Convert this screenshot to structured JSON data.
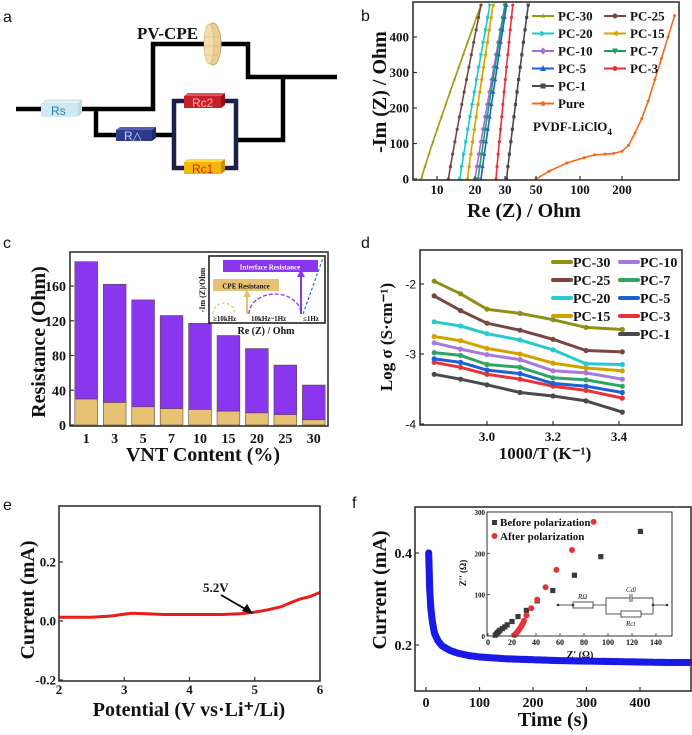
{
  "panels": {
    "a": {
      "letter": "a",
      "title": "PV-CPE",
      "components": {
        "rs": "Rs",
        "ra": "R△",
        "rc2": "Rc2",
        "rc1": "Rc1"
      },
      "colors": {
        "rs": "#cfe9f2",
        "ra": "#2e3a8c",
        "rc2": "#c8202a",
        "rc1": "#f5b800",
        "cpe": "#e9cf94",
        "wire_inner": "#1b1f4a"
      }
    },
    "b": {
      "letter": "b",
      "annotation": "PVDF-LiClO",
      "annotation_sub": "4"
    },
    "c": {
      "letter": "c",
      "inset": {
        "interface_label": "Interface Resistance",
        "cpe_label": "CPE Resistance",
        "ylabel": "-Im (Z)/Ohm",
        "xlabel": "Re (Z) / Ohm",
        "freq_labels": [
          "≥10kHz",
          "10kHz~1Hz",
          "≤1Hz"
        ]
      }
    },
    "d": {
      "letter": "d"
    },
    "e": {
      "letter": "e",
      "annotation": "5.2V"
    },
    "f": {
      "letter": "f",
      "inset": {
        "legend": [
          "Before polarization",
          "After polarization"
        ],
        "xlabel": "Z' (Ω)",
        "ylabel": "Z'' (Ω)",
        "xticks": [
          "0",
          "20",
          "40",
          "60",
          "80",
          "100",
          "120",
          "140"
        ],
        "yticks": [
          "0",
          "100",
          "200",
          "300"
        ],
        "circuit": {
          "r_omega": "RΩ",
          "c_dl": "Cdl",
          "r_ct": "Rct"
        }
      }
    }
  },
  "chart_data": [
    {
      "id": "b",
      "type": "line",
      "title": "",
      "xlabel": "Re (Z) / Ohm",
      "ylabel": "-Im (Z) / Ohm",
      "xticks": [
        "10",
        "20",
        "30",
        "50",
        "100",
        "200"
      ],
      "yticks": [
        "0",
        "100",
        "200",
        "300",
        "400"
      ],
      "ylim": [
        0,
        490
      ],
      "x_axis_note": "broken/non-linear scale",
      "legend_position": "top-right",
      "series": [
        {
          "name": "PC-30",
          "color": "#9a9a12",
          "marker": "star",
          "x_start": 5,
          "x_end": 22
        },
        {
          "name": "PC-25",
          "color": "#7a4545",
          "marker": "circle",
          "x_start": 13,
          "x_end": 22
        },
        {
          "name": "PC-20",
          "color": "#1fc8c8",
          "marker": "triangle-right",
          "x_start": 16,
          "x_end": 25
        },
        {
          "name": "PC-15",
          "color": "#d7a300",
          "marker": "triangle-left",
          "x_start": 18,
          "x_end": 26
        },
        {
          "name": "PC-10",
          "color": "#a46ee0",
          "marker": "diamond",
          "x_start": 20,
          "x_end": 30
        },
        {
          "name": "PC-7",
          "color": "#1f9e5a",
          "marker": "triangle-down",
          "x_start": 21,
          "x_end": 30
        },
        {
          "name": "PC-5",
          "color": "#1f5fd6",
          "marker": "triangle-up",
          "x_start": 22,
          "x_end": 31
        },
        {
          "name": "PC-3",
          "color": "#e8323a",
          "marker": "circle",
          "x_start": 27,
          "x_end": 35
        },
        {
          "name": "PC-1",
          "color": "#4a4a4a",
          "marker": "square",
          "x_start": 31,
          "x_end": 45
        },
        {
          "name": "Pure",
          "color": "#f26b1d",
          "marker": "pentagon",
          "points": [
            [
              50,
              0
            ],
            [
              65,
              22
            ],
            [
              85,
              45
            ],
            [
              110,
              60
            ],
            [
              135,
              68
            ],
            [
              160,
              70
            ],
            [
              180,
              72
            ],
            [
              200,
              78
            ],
            [
              215,
              95
            ],
            [
              230,
              130
            ],
            [
              245,
              170
            ],
            [
              260,
              220
            ],
            [
              275,
              280
            ],
            [
              290,
              340
            ],
            [
              305,
              400
            ],
            [
              320,
              460
            ]
          ]
        }
      ]
    },
    {
      "id": "c",
      "type": "bar",
      "stacked": true,
      "xlabel": "VNT Content (%)",
      "ylabel": "Resistance (Ohm)",
      "categories": [
        "1",
        "3",
        "5",
        "7",
        "10",
        "15",
        "20",
        "25",
        "30"
      ],
      "yticks": [
        "0",
        "40",
        "80",
        "120",
        "160"
      ],
      "ylim": [
        0,
        190
      ],
      "series": [
        {
          "name": "CPE Resistance",
          "color": "#e8c274",
          "values": [
            30,
            26,
            21,
            19,
            18,
            16,
            14,
            12,
            6
          ]
        },
        {
          "name": "Interface Resistance",
          "color": "#8a35ee",
          "values": [
            158,
            136,
            123,
            107,
            99,
            87,
            74,
            57,
            40
          ]
        }
      ],
      "totals": [
        188,
        162,
        144,
        126,
        117,
        103,
        88,
        69,
        46
      ]
    },
    {
      "id": "d",
      "type": "line",
      "xlabel": "1000/T (K⁻¹)",
      "ylabel": "Log σ (S·cm⁻¹)",
      "xticks": [
        "3.0",
        "3.2",
        "3.4"
      ],
      "yticks": [
        "-2",
        "-3",
        "-4"
      ],
      "xlim": [
        2.82,
        3.6
      ],
      "ylim": [
        -4,
        -1.55
      ],
      "x": [
        2.84,
        2.92,
        3.0,
        3.1,
        3.2,
        3.3,
        3.41
      ],
      "legend_position": "top-right",
      "series": [
        {
          "name": "PC-30",
          "color": "#8f8f14",
          "values": [
            -1.96,
            -2.14,
            -2.36,
            -2.42,
            -2.51,
            -2.62,
            -2.65
          ]
        },
        {
          "name": "PC-25",
          "color": "#7a4545",
          "values": [
            -2.17,
            -2.38,
            -2.56,
            -2.66,
            -2.79,
            -2.95,
            -2.97
          ]
        },
        {
          "name": "PC-20",
          "color": "#25cbd2",
          "values": [
            -2.54,
            -2.6,
            -2.71,
            -2.8,
            -2.94,
            -3.14,
            -3.15
          ]
        },
        {
          "name": "PC-15",
          "color": "#d2a100",
          "values": [
            -2.75,
            -2.81,
            -2.92,
            -3.0,
            -3.13,
            -3.2,
            -3.24
          ]
        },
        {
          "name": "PC-10",
          "color": "#a877df",
          "values": [
            -2.84,
            -2.93,
            -3.01,
            -3.08,
            -3.24,
            -3.27,
            -3.36
          ]
        },
        {
          "name": "PC-7",
          "color": "#2ea565",
          "values": [
            -2.98,
            -3.02,
            -3.15,
            -3.19,
            -3.34,
            -3.37,
            -3.46
          ]
        },
        {
          "name": "PC-5",
          "color": "#1f5fd6",
          "values": [
            -3.07,
            -3.12,
            -3.23,
            -3.28,
            -3.42,
            -3.46,
            -3.55
          ]
        },
        {
          "name": "PC-3",
          "color": "#e8323a",
          "values": [
            -3.12,
            -3.19,
            -3.29,
            -3.36,
            -3.46,
            -3.52,
            -3.63
          ]
        },
        {
          "name": "PC-1",
          "color": "#4a4a4a",
          "values": [
            -3.29,
            -3.36,
            -3.44,
            -3.55,
            -3.6,
            -3.67,
            -3.83
          ]
        }
      ]
    },
    {
      "id": "e",
      "type": "line",
      "xlabel": "Potential (V vs·Li⁺/Li)",
      "ylabel": "Current (mA)",
      "xticks": [
        "2",
        "3",
        "4",
        "5",
        "6"
      ],
      "yticks": [
        "-0.2",
        "0.0",
        "0.2"
      ],
      "xlim": [
        2,
        6
      ],
      "ylim": [
        -0.2,
        0.39
      ],
      "annotation": {
        "text": "5.2V",
        "x": 4.98,
        "y": 0.03
      },
      "series": [
        {
          "name": "LSV",
          "color": "#e81e1e",
          "points": [
            [
              2.0,
              0.013
            ],
            [
              2.5,
              0.013
            ],
            [
              2.8,
              0.017
            ],
            [
              3.1,
              0.026
            ],
            [
              3.3,
              0.025
            ],
            [
              3.6,
              0.022
            ],
            [
              4.0,
              0.022
            ],
            [
              4.5,
              0.022
            ],
            [
              4.8,
              0.025
            ],
            [
              5.0,
              0.03
            ],
            [
              5.2,
              0.038
            ],
            [
              5.4,
              0.048
            ],
            [
              5.55,
              0.062
            ],
            [
              5.7,
              0.075
            ],
            [
              5.85,
              0.083
            ],
            [
              6.0,
              0.097
            ]
          ]
        }
      ]
    },
    {
      "id": "f",
      "type": "scatter",
      "xlabel": "Time (s)",
      "ylabel": "Current (mA)",
      "xticks": [
        "0",
        "100",
        "200",
        "300",
        "400"
      ],
      "yticks": [
        "0.2",
        "0.4"
      ],
      "xlim": [
        -20,
        500
      ],
      "ylim": [
        0.1,
        0.5
      ],
      "series": [
        {
          "name": "Chronoamperometry",
          "color": "#1a1ae6",
          "points": [
            [
              5,
              0.4
            ],
            [
              6,
              0.36
            ],
            [
              7,
              0.32
            ],
            [
              9,
              0.28
            ],
            [
              12,
              0.25
            ],
            [
              16,
              0.225
            ],
            [
              22,
              0.21
            ],
            [
              30,
              0.198
            ],
            [
              45,
              0.188
            ],
            [
              60,
              0.182
            ],
            [
              80,
              0.177
            ],
            [
              100,
              0.174
            ],
            [
              150,
              0.17
            ],
            [
              200,
              0.168
            ],
            [
              250,
              0.166
            ],
            [
              300,
              0.165
            ],
            [
              350,
              0.164
            ],
            [
              400,
              0.163
            ],
            [
              450,
              0.162
            ],
            [
              500,
              0.162
            ]
          ]
        }
      ]
    },
    {
      "id": "f-inset",
      "type": "scatter",
      "xlabel": "Z' (Ω)",
      "ylabel": "Z'' (Ω)",
      "xlim": [
        0,
        148
      ],
      "ylim": [
        0,
        300
      ],
      "series": [
        {
          "name": "Before polarization",
          "color": "#3a3a3a",
          "marker": "square",
          "points": [
            [
              6,
              2
            ],
            [
              7,
              5
            ],
            [
              8,
              8
            ],
            [
              9,
              11
            ],
            [
              10,
              14
            ],
            [
              12,
              18
            ],
            [
              14,
              22
            ],
            [
              16,
              27
            ],
            [
              20,
              35
            ],
            [
              25,
              47
            ],
            [
              32,
              62
            ],
            [
              41,
              85
            ],
            [
              54,
              110
            ],
            [
              72,
              147
            ],
            [
              94,
              192
            ],
            [
              127,
              253
            ]
          ]
        },
        {
          "name": "After polarization",
          "color": "#e8323a",
          "marker": "circle",
          "points": [
            [
              22,
              2
            ],
            [
              23,
              5
            ],
            [
              24,
              8
            ],
            [
              25,
              12
            ],
            [
              26,
              16
            ],
            [
              27,
              20
            ],
            [
              28,
              25
            ],
            [
              29,
              30
            ],
            [
              30,
              37
            ],
            [
              32,
              50
            ],
            [
              36,
              67
            ],
            [
              41,
              88
            ],
            [
              48,
              118
            ],
            [
              57,
              160
            ],
            [
              70,
              208
            ],
            [
              88,
              276
            ]
          ]
        }
      ]
    }
  ]
}
